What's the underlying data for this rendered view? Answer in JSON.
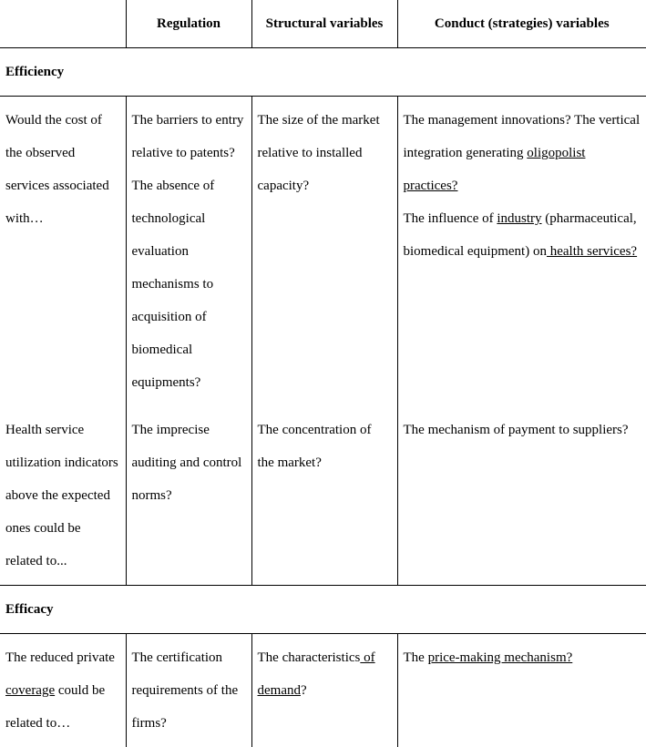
{
  "headers": {
    "blank": "",
    "regulation": "Regulation",
    "structural": "Structural variables",
    "conduct": "Conduct (strategies) variables"
  },
  "sections": {
    "efficiency": "Efficiency",
    "efficacy": "Efficacy"
  },
  "row1": {
    "q": "Would the cost of the observed services associated with…",
    "reg": "The barriers to entry relative to patents? The absence of technological evaluation mechanisms to acquisition of biomedical equipments?",
    "str": "The size of the market relative to installed capacity?",
    "con_a": "The management innovations? The vertical integration generating ",
    "con_a_u": "oligopolist practices?",
    "con_b1": "The influence of ",
    "con_b1_u": "industry",
    "con_b2": " (pharmaceutical, biomedical equipment) on",
    "con_b2_u": " health services?"
  },
  "row2": {
    "q": "Health service utilization indicators above the expected ones could be related to...",
    "reg": "The imprecise auditing and control norms?",
    "str": "The concentration of the market?",
    "con": "The mechanism of payment to suppliers?"
  },
  "row3": {
    "q_a": "The reduced private ",
    "q_a_u": "coverage",
    "q_b": " could be related to…",
    "reg": "The certification requirements of the firms?",
    "str_a": "The characteristics",
    "str_a_u": " of demand",
    "str_b": "?",
    "con_a": "The ",
    "con_a_u": "price-making mechanism?"
  }
}
